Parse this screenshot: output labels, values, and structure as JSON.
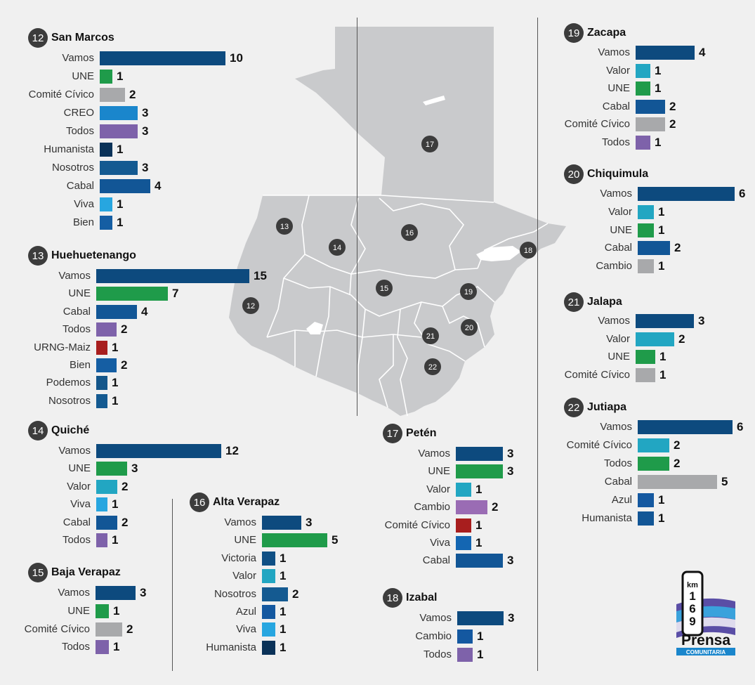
{
  "colors": {
    "Vamos": "#0d4a7e",
    "UNE": "#1f9b4a",
    "Comité Cívico": "#a8a9ab",
    "CREO": "#1a86cc",
    "Todos": "#7e62aa",
    "Humanista": "#0a3258",
    "Nosotros": "#145a91",
    "Cabal": "#125696",
    "Viva": "#27a6e0",
    "Bien": "#155ea3",
    "URNG-Maiz": "#a81e1e",
    "Podemos": "#14568a",
    "Valor": "#22a6c2",
    "Victoria": "#0f4f84",
    "Azul": "#1458a0",
    "Cambio": "#a8a9ab",
    "map_fill": "#c9cacc",
    "map_line": "#ffffff",
    "marker": "#3c3c3c"
  },
  "map_markers": [
    "17",
    "13",
    "14",
    "16",
    "18",
    "15",
    "19",
    "12",
    "21",
    "20",
    "22"
  ],
  "logo": {
    "top": "km",
    "number": "169",
    "name": "Prensa",
    "sub": "COMUNITARIA"
  },
  "chart_data": [
    {
      "type": "bar",
      "number": "12",
      "title": "San Marcos",
      "bars": [
        {
          "party": "Vamos",
          "value": 10
        },
        {
          "party": "UNE",
          "value": 1
        },
        {
          "party": "Comité Cívico",
          "value": 2
        },
        {
          "party": "CREO",
          "value": 3
        },
        {
          "party": "Todos",
          "value": 3
        },
        {
          "party": "Humanista",
          "value": 1
        },
        {
          "party": "Nosotros",
          "value": 3
        },
        {
          "party": "Cabal",
          "value": 4
        },
        {
          "party": "Viva",
          "value": 1
        },
        {
          "party": "Bien",
          "value": 1
        }
      ]
    },
    {
      "type": "bar",
      "number": "13",
      "title": "Huehuetenango",
      "bars": [
        {
          "party": "Vamos",
          "value": 15
        },
        {
          "party": "UNE",
          "value": 7
        },
        {
          "party": "Cabal",
          "value": 4
        },
        {
          "party": "Todos",
          "value": 2
        },
        {
          "party": "URNG-Maiz",
          "value": 1
        },
        {
          "party": "Bien",
          "value": 2
        },
        {
          "party": "Podemos",
          "value": 1
        },
        {
          "party": "Nosotros",
          "value": 1
        }
      ]
    },
    {
      "type": "bar",
      "number": "14",
      "title": "Quiché",
      "bars": [
        {
          "party": "Vamos",
          "value": 12
        },
        {
          "party": "UNE",
          "value": 3
        },
        {
          "party": "Valor",
          "value": 2
        },
        {
          "party": "Viva",
          "value": 1
        },
        {
          "party": "Cabal",
          "value": 2
        },
        {
          "party": "Todos",
          "value": 1
        }
      ]
    },
    {
      "type": "bar",
      "number": "15",
      "title": "Baja Verapaz",
      "bars": [
        {
          "party": "Vamos",
          "value": 3
        },
        {
          "party": "UNE",
          "value": 1
        },
        {
          "party": "Comité Cívico",
          "value": 2
        },
        {
          "party": "Todos",
          "value": 1
        }
      ]
    },
    {
      "type": "bar",
      "number": "16",
      "title": "Alta Verapaz",
      "bars": [
        {
          "party": "Vamos",
          "value": 3
        },
        {
          "party": "UNE",
          "value": 5
        },
        {
          "party": "Victoria",
          "value": 1
        },
        {
          "party": "Valor",
          "value": 1
        },
        {
          "party": "Nosotros",
          "value": 2
        },
        {
          "party": "Azul",
          "value": 1
        },
        {
          "party": "Viva",
          "value": 1
        },
        {
          "party": "Humanista",
          "value": 1
        }
      ]
    },
    {
      "type": "bar",
      "number": "17",
      "title": "Petén",
      "bars": [
        {
          "party": "Vamos",
          "value": 3
        },
        {
          "party": "UNE",
          "value": 3
        },
        {
          "party": "Valor",
          "value": 1
        },
        {
          "party": "Cambio",
          "value": 2,
          "color": "#9a6cb4"
        },
        {
          "party": "Comité Cívico",
          "value": 1,
          "color": "#a81e1e"
        },
        {
          "party": "Viva",
          "value": 1,
          "color": "#1466b2"
        },
        {
          "party": "Cabal",
          "value": 3
        }
      ]
    },
    {
      "type": "bar",
      "number": "18",
      "title": "Izabal",
      "bars": [
        {
          "party": "Vamos",
          "value": 3
        },
        {
          "party": "Cambio",
          "value": 1,
          "color": "#1458a0"
        },
        {
          "party": "Todos",
          "value": 1
        }
      ]
    },
    {
      "type": "bar",
      "number": "19",
      "title": "Zacapa",
      "bars": [
        {
          "party": "Vamos",
          "value": 4
        },
        {
          "party": "Valor",
          "value": 1
        },
        {
          "party": "UNE",
          "value": 1
        },
        {
          "party": "Cabal",
          "value": 2
        },
        {
          "party": "Comité Cívico",
          "value": 2
        },
        {
          "party": "Todos",
          "value": 1
        }
      ]
    },
    {
      "type": "bar",
      "number": "20",
      "title": "Chiquimula",
      "bars": [
        {
          "party": "Vamos",
          "value": 6
        },
        {
          "party": "Valor",
          "value": 1
        },
        {
          "party": "UNE",
          "value": 1
        },
        {
          "party": "Cabal",
          "value": 2
        },
        {
          "party": "Cambio",
          "value": 1
        }
      ]
    },
    {
      "type": "bar",
      "number": "21",
      "title": "Jalapa",
      "bars": [
        {
          "party": "Vamos",
          "value": 3
        },
        {
          "party": "Valor",
          "value": 2
        },
        {
          "party": "UNE",
          "value": 1
        },
        {
          "party": "Comité Cívico",
          "value": 1
        }
      ]
    },
    {
      "type": "bar",
      "number": "22",
      "title": "Jutiapa",
      "bars": [
        {
          "party": "Vamos",
          "value": 6
        },
        {
          "party": "Comité Cívico",
          "value": 2,
          "color": "#22a6c2"
        },
        {
          "party": "Todos",
          "value": 2,
          "color": "#1f9b4a"
        },
        {
          "party": "Cabal",
          "value": 5,
          "color": "#a8a9ab"
        },
        {
          "party": "Azul",
          "value": 1
        },
        {
          "party": "Humanista",
          "value": 1,
          "color": "#125696"
        }
      ]
    }
  ]
}
